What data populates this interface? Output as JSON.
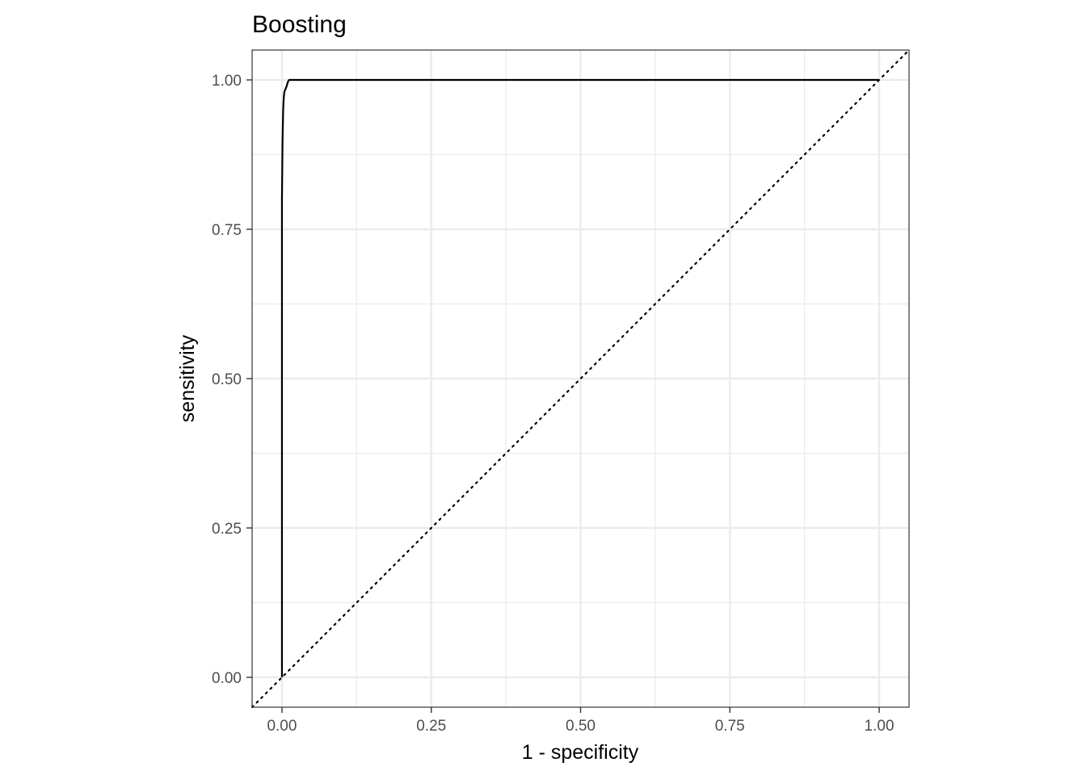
{
  "chart_data": {
    "type": "line",
    "title": "Boosting",
    "xlabel": "1 - specificity",
    "ylabel": "sensitivity",
    "xlim": [
      -0.05,
      1.05
    ],
    "ylim": [
      -0.05,
      1.05
    ],
    "x_ticks": [
      "0.00",
      "0.25",
      "0.50",
      "0.75",
      "1.00"
    ],
    "y_ticks": [
      "0.00",
      "0.25",
      "0.50",
      "0.75",
      "1.00"
    ],
    "grid": true,
    "legend": "none",
    "series": [
      {
        "kind": "roc_curve",
        "color": "#000000",
        "points": [
          [
            0.0,
            0.0
          ],
          [
            0.0,
            0.5
          ],
          [
            0.0,
            0.8
          ],
          [
            0.001,
            0.9
          ],
          [
            0.002,
            0.95
          ],
          [
            0.003,
            0.97
          ],
          [
            0.004,
            0.98
          ],
          [
            0.006,
            0.985
          ],
          [
            0.008,
            0.99
          ],
          [
            0.01,
            0.997
          ],
          [
            0.012,
            1.0
          ],
          [
            0.27,
            1.0
          ],
          [
            1.0,
            1.0
          ]
        ]
      },
      {
        "kind": "reference_diagonal",
        "color": "#000000",
        "style": "dotted",
        "points": [
          [
            -0.05,
            -0.05
          ],
          [
            1.05,
            1.05
          ]
        ]
      }
    ]
  }
}
